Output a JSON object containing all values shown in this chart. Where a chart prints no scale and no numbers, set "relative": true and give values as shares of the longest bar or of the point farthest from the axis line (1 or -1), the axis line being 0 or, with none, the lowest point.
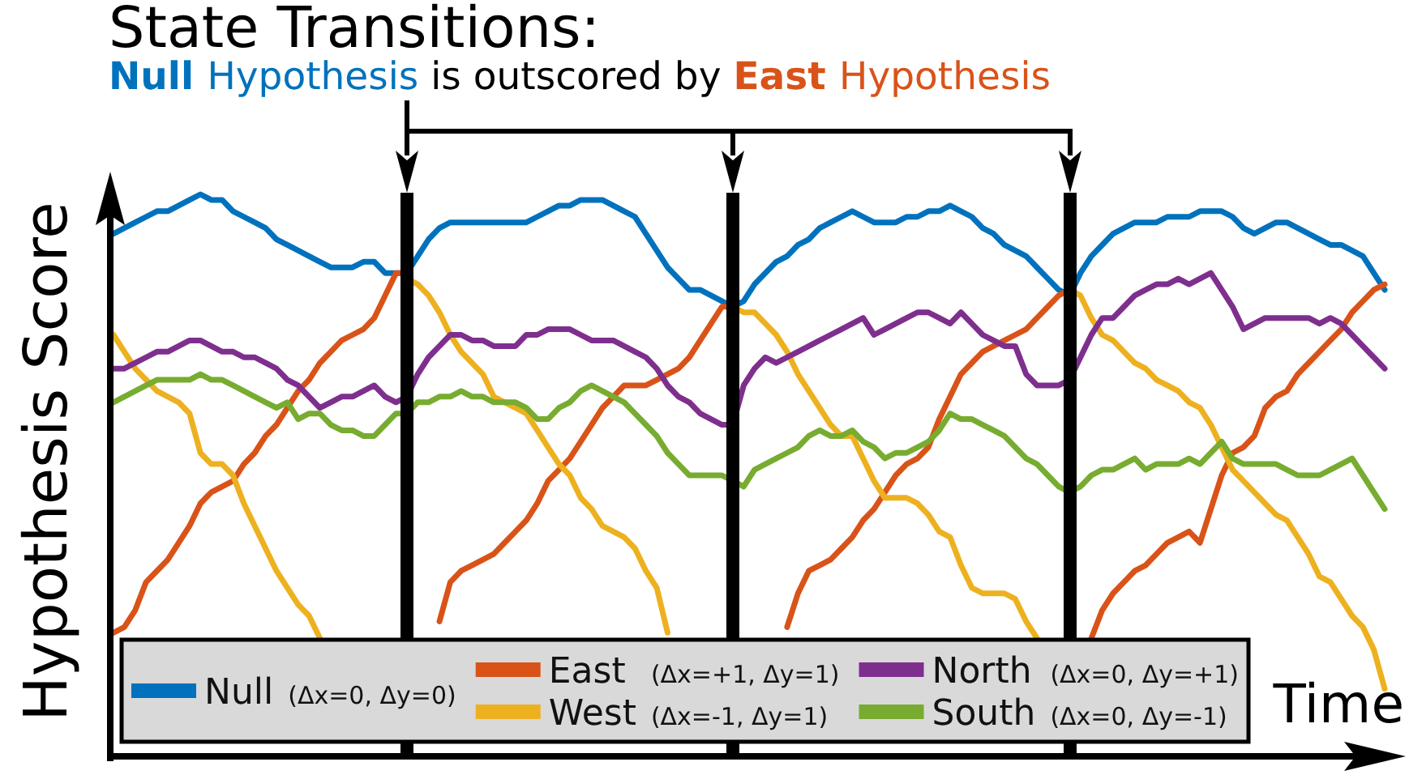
{
  "chart_data": {
    "type": "line",
    "title": "State Transitions:",
    "subtitle": "Null Hypothesis is outscored by East Hypothesis",
    "xlabel": "Time",
    "ylabel": "Hypothesis Score",
    "relative": true,
    "legend": "bottom",
    "categories": [
      null,
      null,
      null,
      null,
      null,
      null,
      null,
      null,
      null,
      null,
      null,
      null,
      null,
      null,
      null,
      null,
      null,
      null,
      null,
      null,
      null,
      null,
      null,
      null,
      null,
      null,
      null,
      null,
      null,
      null,
      null,
      null,
      null,
      null,
      null,
      null,
      null,
      null,
      null,
      null,
      null,
      null,
      null,
      null,
      null,
      null,
      null,
      null,
      null,
      null,
      null,
      null,
      null,
      null,
      null,
      null,
      null,
      null,
      null,
      null,
      null,
      null,
      null,
      null,
      null,
      null,
      null,
      null,
      null,
      null,
      null,
      null,
      null,
      null,
      null,
      null,
      null,
      null,
      null,
      null,
      null,
      null,
      null,
      null,
      null,
      null,
      null,
      null,
      null,
      null,
      null,
      null,
      null,
      null,
      null,
      null,
      null,
      null,
      null,
      null,
      null,
      null,
      null,
      null,
      null,
      null,
      null,
      null,
      null,
      null,
      null,
      null,
      null,
      null,
      null,
      null,
      null,
      null
    ],
    "series": [
      {
        "name": "Null (Δx=0, Δy=0)",
        "color": "#0072bd",
        "values": [
          0.93,
          0.94,
          0.95,
          0.96,
          0.97,
          0.97,
          0.98,
          0.99,
          1.0,
          0.99,
          0.99,
          0.97,
          0.96,
          0.95,
          0.94,
          0.92,
          0.91,
          0.9,
          0.89,
          0.88,
          0.87,
          0.87,
          0.87,
          0.88,
          0.88,
          0.86,
          0.86,
          0.86,
          0.89,
          0.92,
          0.94,
          0.95,
          0.95,
          0.95,
          0.95,
          0.95,
          0.95,
          0.95,
          0.95,
          0.96,
          0.97,
          0.98,
          0.98,
          0.99,
          0.99,
          0.99,
          0.98,
          0.97,
          0.96,
          0.93,
          0.9,
          0.87,
          0.85,
          0.83,
          0.83,
          0.82,
          0.81,
          0.8,
          0.81,
          0.84,
          0.86,
          0.88,
          0.89,
          0.91,
          0.92,
          0.94,
          0.95,
          0.96,
          0.97,
          0.96,
          0.95,
          0.95,
          0.95,
          0.96,
          0.96,
          0.97,
          0.97,
          0.98,
          0.97,
          0.96,
          0.94,
          0.93,
          0.91,
          0.9,
          0.89,
          0.87,
          0.85,
          0.83,
          0.82,
          0.86,
          0.89,
          0.91,
          0.93,
          0.94,
          0.95,
          0.95,
          0.95,
          0.96,
          0.96,
          0.96,
          0.97,
          0.97,
          0.97,
          0.96,
          0.94,
          0.93,
          0.94,
          0.95,
          0.95,
          0.94,
          0.93,
          0.92,
          0.91,
          0.91,
          0.9,
          0.89,
          0.86,
          0.83
        ]
      },
      {
        "name": "East (Δx=+1, Δy=1)",
        "color": "#d95319",
        "values": [
          0.22,
          0.23,
          0.26,
          0.31,
          0.33,
          0.35,
          0.38,
          0.41,
          0.45,
          0.47,
          0.48,
          0.49,
          0.52,
          0.54,
          0.57,
          0.59,
          0.62,
          0.65,
          0.67,
          0.7,
          0.72,
          0.74,
          0.75,
          0.76,
          0.78,
          0.82,
          0.86,
          0.86,
          null,
          null,
          0.24,
          0.31,
          0.33,
          0.34,
          0.35,
          0.36,
          0.38,
          0.4,
          0.42,
          0.45,
          0.49,
          0.51,
          0.53,
          0.56,
          0.59,
          0.62,
          0.64,
          0.66,
          0.66,
          0.66,
          0.67,
          0.68,
          0.69,
          0.71,
          0.74,
          0.77,
          0.8,
          0.8,
          null,
          null,
          null,
          null,
          0.23,
          0.29,
          0.33,
          0.34,
          0.35,
          0.37,
          0.39,
          0.42,
          0.44,
          0.47,
          0.5,
          0.52,
          0.53,
          0.55,
          0.6,
          0.64,
          0.68,
          0.7,
          0.72,
          0.73,
          0.74,
          0.75,
          0.76,
          0.78,
          0.8,
          0.82,
          0.83,
          null,
          0.21,
          0.26,
          0.29,
          0.31,
          0.33,
          0.34,
          0.36,
          0.38,
          0.39,
          0.4,
          0.38,
          0.44,
          0.5,
          0.54,
          0.55,
          0.57,
          0.62,
          0.64,
          0.65,
          0.68,
          0.7,
          0.72,
          0.74,
          0.76,
          0.79,
          0.81,
          0.83,
          0.84
        ]
      },
      {
        "name": "West (Δx=-1, Δy=1)",
        "color": "#edb120",
        "values": [
          0.75,
          0.72,
          0.69,
          0.67,
          0.65,
          0.64,
          0.63,
          0.61,
          0.54,
          0.52,
          0.52,
          0.5,
          0.45,
          0.41,
          0.37,
          0.33,
          0.3,
          0.27,
          0.25,
          0.21,
          null,
          null,
          null,
          null,
          null,
          null,
          null,
          0.85,
          0.84,
          0.82,
          0.79,
          0.75,
          0.72,
          0.7,
          0.68,
          0.64,
          0.63,
          0.62,
          0.61,
          0.58,
          0.55,
          0.52,
          0.5,
          0.46,
          0.44,
          0.41,
          0.4,
          0.39,
          0.37,
          0.33,
          0.3,
          0.22,
          null,
          null,
          null,
          null,
          null,
          0.8,
          0.79,
          0.79,
          0.77,
          0.75,
          0.72,
          0.68,
          0.65,
          0.62,
          0.59,
          0.57,
          0.57,
          0.53,
          0.49,
          0.46,
          0.46,
          0.46,
          0.45,
          0.43,
          0.4,
          0.39,
          0.34,
          0.3,
          0.29,
          0.29,
          0.29,
          0.28,
          0.24,
          0.21,
          null,
          null,
          0.83,
          0.82,
          0.78,
          0.75,
          0.74,
          0.72,
          0.7,
          0.69,
          0.67,
          0.66,
          0.65,
          0.63,
          0.62,
          0.59,
          0.55,
          0.51,
          0.49,
          0.47,
          0.45,
          0.43,
          0.42,
          0.39,
          0.36,
          0.32,
          0.31,
          0.28,
          0.25,
          0.23,
          0.19,
          0.12
        ]
      },
      {
        "name": "North (Δx=0, Δy=+1)",
        "color": "#7e2f8e",
        "values": [
          0.69,
          0.69,
          0.7,
          0.71,
          0.72,
          0.72,
          0.73,
          0.74,
          0.74,
          0.73,
          0.72,
          0.72,
          0.71,
          0.71,
          0.7,
          0.69,
          0.67,
          0.66,
          0.64,
          0.62,
          0.63,
          0.64,
          0.64,
          0.65,
          0.66,
          0.64,
          0.63,
          0.64,
          0.68,
          0.71,
          0.73,
          0.75,
          0.75,
          0.74,
          0.74,
          0.73,
          0.73,
          0.73,
          0.75,
          0.75,
          0.76,
          0.76,
          0.76,
          0.75,
          0.74,
          0.74,
          0.74,
          0.73,
          0.72,
          0.71,
          0.69,
          0.66,
          0.64,
          0.63,
          0.61,
          0.6,
          0.59,
          0.59,
          0.66,
          0.69,
          0.71,
          0.7,
          0.71,
          0.72,
          0.73,
          0.74,
          0.75,
          0.76,
          0.77,
          0.78,
          0.75,
          0.76,
          0.77,
          0.78,
          0.79,
          0.79,
          0.78,
          0.77,
          0.79,
          0.77,
          0.75,
          0.74,
          0.73,
          0.73,
          0.68,
          0.66,
          0.66,
          0.66,
          0.67,
          0.71,
          0.75,
          0.78,
          0.78,
          0.8,
          0.82,
          0.83,
          0.84,
          0.84,
          0.85,
          0.84,
          0.85,
          0.86,
          0.83,
          0.8,
          0.76,
          0.77,
          0.78,
          0.78,
          0.78,
          0.78,
          0.78,
          0.77,
          0.78,
          0.77,
          0.75,
          0.73,
          0.71,
          0.69
        ]
      },
      {
        "name": "South (Δx=0, Δy=-1)",
        "color": "#77ac30",
        "values": [
          0.63,
          0.64,
          0.65,
          0.66,
          0.67,
          0.67,
          0.67,
          0.67,
          0.68,
          0.67,
          0.67,
          0.66,
          0.65,
          0.64,
          0.63,
          0.62,
          0.63,
          0.6,
          0.61,
          0.61,
          0.59,
          0.58,
          0.58,
          0.57,
          0.57,
          0.59,
          0.61,
          0.61,
          0.63,
          0.63,
          0.64,
          0.64,
          0.65,
          0.64,
          0.64,
          0.63,
          0.63,
          0.63,
          0.62,
          0.6,
          0.6,
          0.62,
          0.63,
          0.65,
          0.66,
          0.65,
          0.64,
          0.63,
          0.61,
          0.59,
          0.57,
          0.54,
          0.52,
          0.5,
          0.5,
          0.5,
          0.5,
          0.49,
          0.48,
          0.51,
          0.52,
          0.53,
          0.54,
          0.55,
          0.57,
          0.58,
          0.57,
          0.57,
          0.58,
          0.56,
          0.55,
          0.53,
          0.54,
          0.54,
          0.55,
          0.56,
          0.58,
          0.61,
          0.6,
          0.6,
          0.59,
          0.58,
          0.57,
          0.55,
          0.53,
          0.52,
          0.5,
          0.48,
          0.47,
          0.48,
          0.5,
          0.51,
          0.51,
          0.52,
          0.53,
          0.51,
          0.52,
          0.52,
          0.52,
          0.53,
          0.52,
          0.54,
          0.56,
          0.53,
          0.52,
          0.52,
          0.52,
          0.52,
          0.51,
          0.5,
          0.5,
          0.5,
          0.51,
          0.52,
          0.53,
          0.5,
          0.47,
          0.44
        ]
      }
    ]
  }
}
